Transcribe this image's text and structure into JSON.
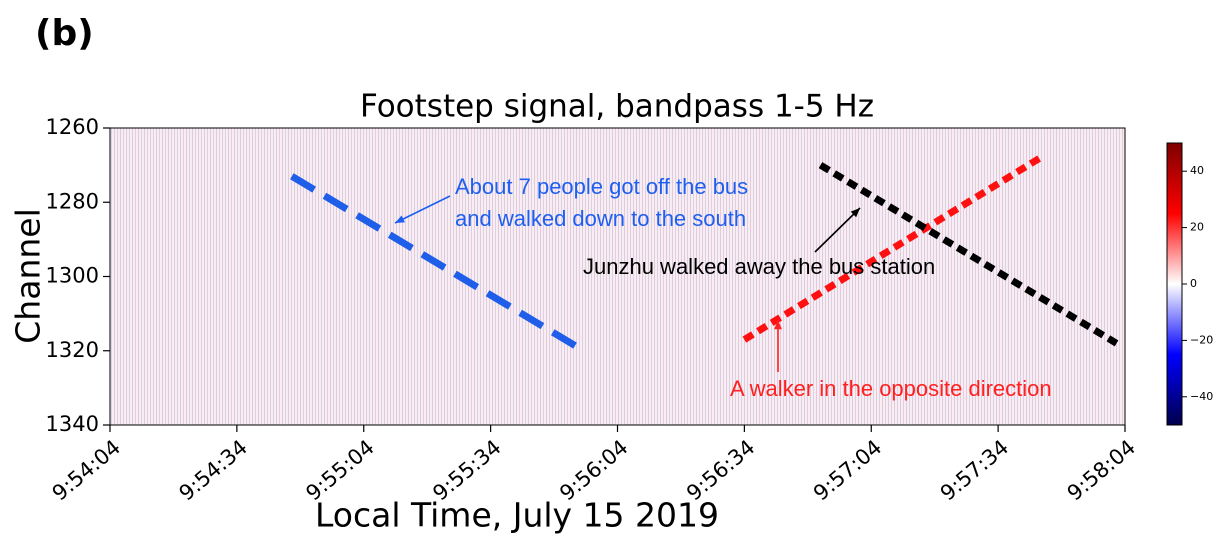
{
  "panel_label": "(b)",
  "chart_data": {
    "type": "heatmap",
    "title": "Footstep signal, bandpass 1-5 Hz",
    "xlabel": "Local Time, July 15 2019",
    "ylabel": "Channel",
    "xlim": [
      35644,
      35884
    ],
    "xticks": [
      {
        "value": 35644,
        "label": "9:54:04"
      },
      {
        "value": 35674,
        "label": "9:54:34"
      },
      {
        "value": 35704,
        "label": "9:55:04"
      },
      {
        "value": 35734,
        "label": "9:55:34"
      },
      {
        "value": 35764,
        "label": "9:56:04"
      },
      {
        "value": 35794,
        "label": "9:56:34"
      },
      {
        "value": 35824,
        "label": "9:57:04"
      },
      {
        "value": 35854,
        "label": "9:57:34"
      },
      {
        "value": 35884,
        "label": "9:58:04"
      }
    ],
    "ylim": [
      1260,
      1340
    ],
    "yticks": [
      1260,
      1280,
      1300,
      1320,
      1340
    ],
    "colorbar": {
      "lim": [
        -50,
        50
      ],
      "ticks": [
        40,
        20,
        0,
        {
          "value": -20,
          "label": "−20"
        },
        {
          "value": -40,
          "label": "−40"
        }
      ],
      "colors": [
        "#00004c",
        "#0000ff",
        "#ffffff",
        "#ff0000",
        "#7f0000"
      ]
    },
    "series": [
      {
        "color": "#1f5ee8",
        "style": "long-dash",
        "x": [
          35687,
          35756
        ],
        "y": [
          1273,
          1320
        ]
      },
      {
        "color": "#ff1010",
        "style": "short-dash",
        "x": [
          35794,
          35864
        ],
        "y": [
          1317,
          1268
        ]
      },
      {
        "color": "#000000",
        "style": "short-dash",
        "x": [
          35812,
          35882
        ],
        "y": [
          1270,
          1318
        ]
      }
    ],
    "annotations": [
      {
        "lines": [
          "About 7 people got off the bus",
          "and walked down to the south"
        ],
        "color": "#1e5ef0"
      },
      {
        "lines": [
          "Junzhu walked away the bus station"
        ],
        "color": "#000000"
      },
      {
        "lines": [
          "A walker in the opposite direction"
        ],
        "color": "#ff2020"
      }
    ]
  }
}
